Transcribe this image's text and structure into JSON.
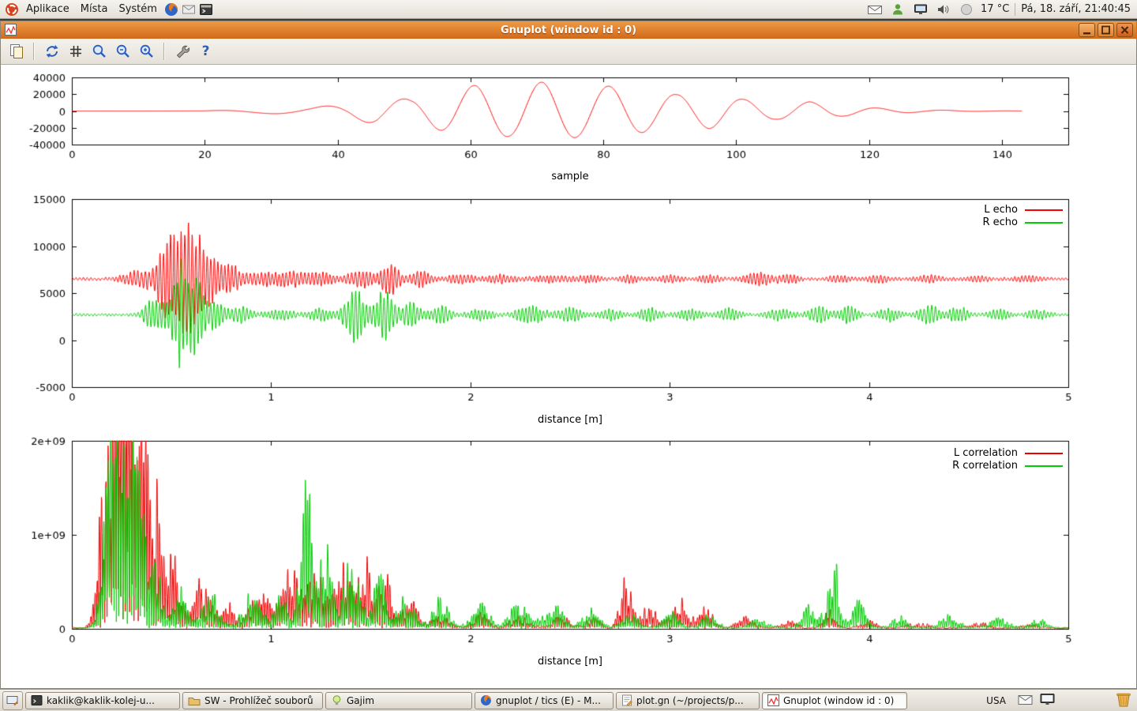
{
  "top_panel": {
    "menus": [
      {
        "label": "Aplikace"
      },
      {
        "label": "Místa"
      },
      {
        "label": "Systém"
      }
    ],
    "temperature": "17 °C",
    "clock": "Pá, 18. září, 21:40:45"
  },
  "window": {
    "title": "Gnuplot (window id : 0)"
  },
  "toolbar": {
    "help_glyph": "?"
  },
  "taskbar": {
    "keyboard_layout": "USA",
    "buttons": [
      {
        "label": "kaklik@kaklik-kolej-u..."
      },
      {
        "label": "SW - Prohlížeč souborů"
      },
      {
        "label": "Gajim"
      },
      {
        "label": "gnuplot / tics (E) - M..."
      },
      {
        "label": "plot.gn (~/projects/p..."
      },
      {
        "label": "Gnuplot (window id : 0)"
      }
    ]
  },
  "chart_data": [
    {
      "type": "line",
      "title": "",
      "xlabel": "sample",
      "ylabel": "",
      "xlim": [
        0,
        150
      ],
      "xticks": [
        0,
        20,
        40,
        60,
        80,
        100,
        120,
        140
      ],
      "ylim": [
        -40000,
        40000
      ],
      "yticks": [
        -40000,
        -20000,
        0,
        20000,
        40000
      ],
      "grid": false,
      "series": [
        {
          "name": "",
          "color": "#ff0000",
          "signal": {
            "kind": "chirp",
            "xend": 143,
            "phase0": 0.55,
            "envelope": [
              [
                0,
                0
              ],
              [
                20,
                150
              ],
              [
                26,
                2200
              ],
              [
                31,
                3400
              ],
              [
                36,
                4200
              ],
              [
                41,
                8000
              ],
              [
                46,
                16000
              ],
              [
                51,
                14000
              ],
              [
                56,
                24000
              ],
              [
                61,
                31000
              ],
              [
                66,
                30500
              ],
              [
                71,
                34500
              ],
              [
                76,
                31500
              ],
              [
                81,
                29500
              ],
              [
                86,
                25500
              ],
              [
                91,
                19500
              ],
              [
                96,
                21000
              ],
              [
                101,
                14000
              ],
              [
                106,
                9800
              ],
              [
                111,
                11000
              ],
              [
                116,
                6200
              ],
              [
                122,
                3200
              ],
              [
                128,
                1400
              ],
              [
                135,
                500
              ],
              [
                142,
                120
              ],
              [
                150,
                0
              ]
            ],
            "freq": [
              [
                0,
                0.028
              ],
              [
                28,
                0.05
              ],
              [
                42,
                0.08
              ],
              [
                55,
                0.098
              ],
              [
                150,
                0.1
              ]
            ]
          }
        }
      ]
    },
    {
      "type": "line",
      "title": "",
      "xlabel": "distance [m]",
      "ylabel": "",
      "xlim": [
        0,
        5
      ],
      "xticks": [
        0,
        1,
        2,
        3,
        4,
        5
      ],
      "ylim": [
        -5000,
        15000
      ],
      "yticks": [
        -5000,
        0,
        5000,
        10000,
        15000
      ],
      "grid": false,
      "legend_position": "top-right",
      "series": [
        {
          "name": "L echo",
          "color": "#ff0000",
          "signal": {
            "kind": "burst",
            "seed": 1,
            "baseline": 6500,
            "carrier_freq": 55,
            "noise": 150,
            "bursts": [
              [
                0.35,
                0.1,
                900
              ],
              [
                0.47,
                0.05,
                3200
              ],
              [
                0.55,
                0.05,
                6300
              ],
              [
                0.62,
                0.04,
                4500
              ],
              [
                0.7,
                0.05,
                2600
              ],
              [
                0.8,
                0.06,
                1300
              ],
              [
                0.95,
                0.08,
                700
              ],
              [
                1.1,
                0.08,
                800
              ],
              [
                1.25,
                0.07,
                700
              ],
              [
                1.45,
                0.08,
                900
              ],
              [
                1.6,
                0.05,
                1600
              ],
              [
                1.75,
                0.06,
                800
              ],
              [
                1.95,
                0.07,
                500
              ],
              [
                2.15,
                0.08,
                420
              ],
              [
                2.4,
                0.1,
                350
              ],
              [
                2.6,
                0.07,
                320
              ],
              [
                2.8,
                0.05,
                380
              ],
              [
                3.0,
                0.08,
                320
              ],
              [
                3.2,
                0.06,
                380
              ],
              [
                3.45,
                0.08,
                650
              ],
              [
                3.6,
                0.05,
                450
              ],
              [
                3.85,
                0.07,
                320
              ],
              [
                4.05,
                0.06,
                380
              ],
              [
                4.3,
                0.08,
                320
              ],
              [
                4.55,
                0.07,
                280
              ],
              [
                4.8,
                0.08,
                260
              ]
            ]
          }
        },
        {
          "name": "R echo",
          "color": "#00cc00",
          "signal": {
            "kind": "burst",
            "seed": 2,
            "baseline": 2700,
            "carrier_freq": 55,
            "noise": 150,
            "bursts": [
              [
                0.42,
                0.06,
                1700
              ],
              [
                0.55,
                0.05,
                5300
              ],
              [
                0.63,
                0.04,
                3200
              ],
              [
                0.72,
                0.05,
                1500
              ],
              [
                0.85,
                0.06,
                800
              ],
              [
                1.05,
                0.08,
                500
              ],
              [
                1.25,
                0.06,
                650
              ],
              [
                1.42,
                0.06,
                2700
              ],
              [
                1.57,
                0.05,
                2600
              ],
              [
                1.7,
                0.05,
                1400
              ],
              [
                1.85,
                0.06,
                800
              ],
              [
                2.05,
                0.07,
                550
              ],
              [
                2.3,
                0.08,
                850
              ],
              [
                2.5,
                0.07,
                650
              ],
              [
                2.7,
                0.06,
                550
              ],
              [
                2.9,
                0.06,
                650
              ],
              [
                3.1,
                0.07,
                550
              ],
              [
                3.3,
                0.06,
                650
              ],
              [
                3.55,
                0.07,
                550
              ],
              [
                3.75,
                0.06,
                750
              ],
              [
                3.9,
                0.05,
                850
              ],
              [
                4.1,
                0.06,
                650
              ],
              [
                4.3,
                0.06,
                950
              ],
              [
                4.45,
                0.05,
                850
              ],
              [
                4.65,
                0.06,
                550
              ],
              [
                4.85,
                0.06,
                450
              ]
            ]
          }
        }
      ]
    },
    {
      "type": "line",
      "title": "",
      "xlabel": "distance [m]",
      "ylabel": "",
      "xlim": [
        0,
        5
      ],
      "xticks": [
        0,
        1,
        2,
        3,
        4,
        5
      ],
      "ylim": [
        0,
        2000000000
      ],
      "yticks": [
        0,
        1000000000,
        2000000000
      ],
      "ytick_labels": [
        "0",
        "1e+09",
        "2e+09"
      ],
      "grid": false,
      "legend_position": "top-right",
      "series": [
        {
          "name": "L correlation",
          "color": "#ee0000",
          "signal": {
            "kind": "spikes",
            "seed": 3,
            "carrier_freq": 45,
            "base": 18000000,
            "peaks": [
              [
                0.17,
                0.05,
                1500000000.0
              ],
              [
                0.24,
                0.05,
                2300000000.0
              ],
              [
                0.3,
                0.06,
                2100000000.0
              ],
              [
                0.37,
                0.05,
                1600000000.0
              ],
              [
                0.44,
                0.05,
                1050000000.0
              ],
              [
                0.52,
                0.04,
                600000000.0
              ],
              [
                0.65,
                0.06,
                500000000.0
              ],
              [
                0.78,
                0.05,
                320000000.0
              ],
              [
                0.95,
                0.07,
                450000000.0
              ],
              [
                1.1,
                0.06,
                600000000.0
              ],
              [
                1.22,
                0.05,
                650000000.0
              ],
              [
                1.35,
                0.06,
                650000000.0
              ],
              [
                1.47,
                0.06,
                700000000.0
              ],
              [
                1.58,
                0.05,
                500000000.0
              ],
              [
                1.7,
                0.05,
                280000000.0
              ],
              [
                1.85,
                0.06,
                140000000.0
              ],
              [
                2.05,
                0.06,
                150000000.0
              ],
              [
                2.25,
                0.07,
                120000000.0
              ],
              [
                2.45,
                0.06,
                140000000.0
              ],
              [
                2.62,
                0.05,
                120000000.0
              ],
              [
                2.78,
                0.04,
                550000000.0
              ],
              [
                2.9,
                0.05,
                250000000.0
              ],
              [
                3.05,
                0.06,
                300000000.0
              ],
              [
                3.18,
                0.05,
                220000000.0
              ],
              [
                3.38,
                0.06,
                120000000.0
              ],
              [
                3.6,
                0.06,
                80000000.0
              ],
              [
                3.8,
                0.04,
                200000000.0
              ],
              [
                4.0,
                0.06,
                80000000.0
              ],
              [
                4.25,
                0.08,
                60000000.0
              ],
              [
                4.55,
                0.08,
                60000000.0
              ],
              [
                4.8,
                0.07,
                50000000.0
              ]
            ]
          }
        },
        {
          "name": "R correlation",
          "color": "#00cc00",
          "signal": {
            "kind": "spikes",
            "seed": 4,
            "carrier_freq": 45,
            "base": 18000000,
            "peaks": [
              [
                0.2,
                0.05,
                2000000000.0
              ],
              [
                0.27,
                0.05,
                2200000000.0
              ],
              [
                0.33,
                0.05,
                1500000000.0
              ],
              [
                0.42,
                0.04,
                700000000.0
              ],
              [
                0.55,
                0.05,
                400000000.0
              ],
              [
                0.7,
                0.06,
                350000000.0
              ],
              [
                0.9,
                0.06,
                350000000.0
              ],
              [
                1.05,
                0.05,
                450000000.0
              ],
              [
                1.18,
                0.04,
                1700000000.0
              ],
              [
                1.27,
                0.04,
                900000000.0
              ],
              [
                1.4,
                0.06,
                700000000.0
              ],
              [
                1.55,
                0.05,
                550000000.0
              ],
              [
                1.68,
                0.05,
                350000000.0
              ],
              [
                1.85,
                0.06,
                300000000.0
              ],
              [
                2.05,
                0.06,
                250000000.0
              ],
              [
                2.25,
                0.07,
                300000000.0
              ],
              [
                2.42,
                0.06,
                250000000.0
              ],
              [
                2.6,
                0.06,
                200000000.0
              ],
              [
                2.8,
                0.06,
                150000000.0
              ],
              [
                3.0,
                0.06,
                180000000.0
              ],
              [
                3.2,
                0.06,
                150000000.0
              ],
              [
                3.45,
                0.06,
                120000000.0
              ],
              [
                3.7,
                0.05,
                250000000.0
              ],
              [
                3.82,
                0.04,
                750000000.0
              ],
              [
                3.95,
                0.05,
                300000000.0
              ],
              [
                4.15,
                0.06,
                120000000.0
              ],
              [
                4.4,
                0.07,
                140000000.0
              ],
              [
                4.65,
                0.07,
                120000000.0
              ],
              [
                4.85,
                0.06,
                100000000.0
              ]
            ]
          }
        }
      ]
    }
  ]
}
